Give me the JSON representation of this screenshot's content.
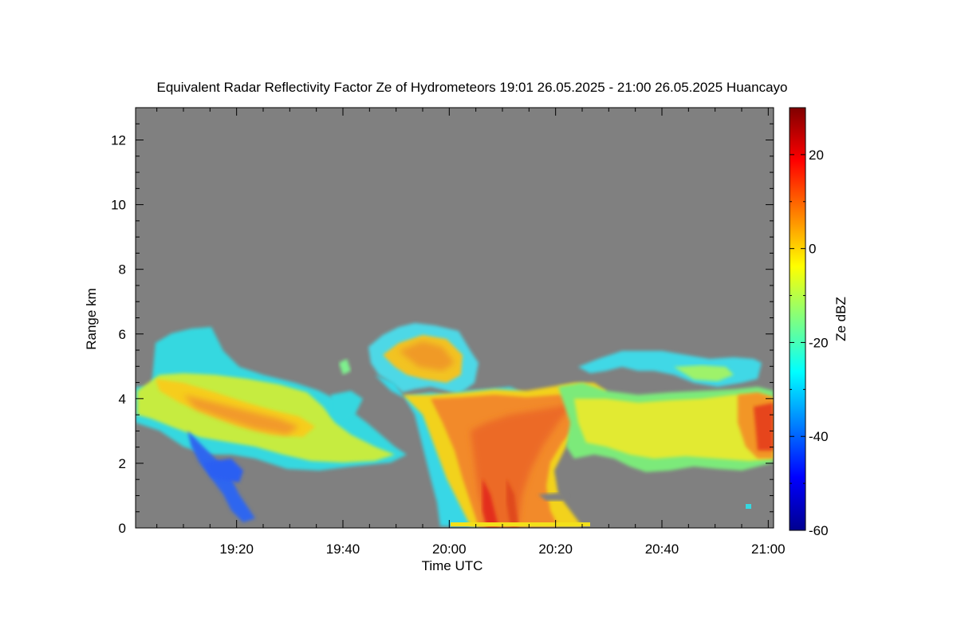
{
  "chart_data": {
    "type": "heatmap",
    "title": "Equivalent Radar Reflectivity Factor Ze of Hydrometeors   19:01 26.05.2025 - 21:00 26.05.2025 Huancayo",
    "xlabel": "Time UTC",
    "ylabel": "Range km",
    "x_ticks": [
      "19:20",
      "19:40",
      "20:00",
      "20:20",
      "20:40",
      "21:00"
    ],
    "x_range": [
      "19:01",
      "21:01"
    ],
    "y_ticks": [
      "0",
      "2",
      "4",
      "6",
      "8",
      "10",
      "12"
    ],
    "ylim": [
      0,
      13
    ],
    "background_color": "#808080",
    "colorbar": {
      "label": "Ze dBZ",
      "range": [
        -60,
        30
      ],
      "ticks": [
        "20",
        "0",
        "-20",
        "-40",
        "-60"
      ],
      "colormap": "jet"
    },
    "echo_layers": [
      {
        "name": "layer-west",
        "time_start": "19:01",
        "time_end": "19:55",
        "base_km": 2.0,
        "top_km": 6.3,
        "max_dbz": 5
      },
      {
        "name": "layer-center-convective",
        "time_start": "19:50",
        "time_end": "20:27",
        "base_km": 0.0,
        "top_km": 6.4,
        "max_dbz": 20
      },
      {
        "name": "layer-east",
        "time_start": "20:20",
        "time_end": "21:01",
        "base_km": 1.8,
        "top_km": 5.5,
        "max_dbz": 15
      }
    ]
  }
}
